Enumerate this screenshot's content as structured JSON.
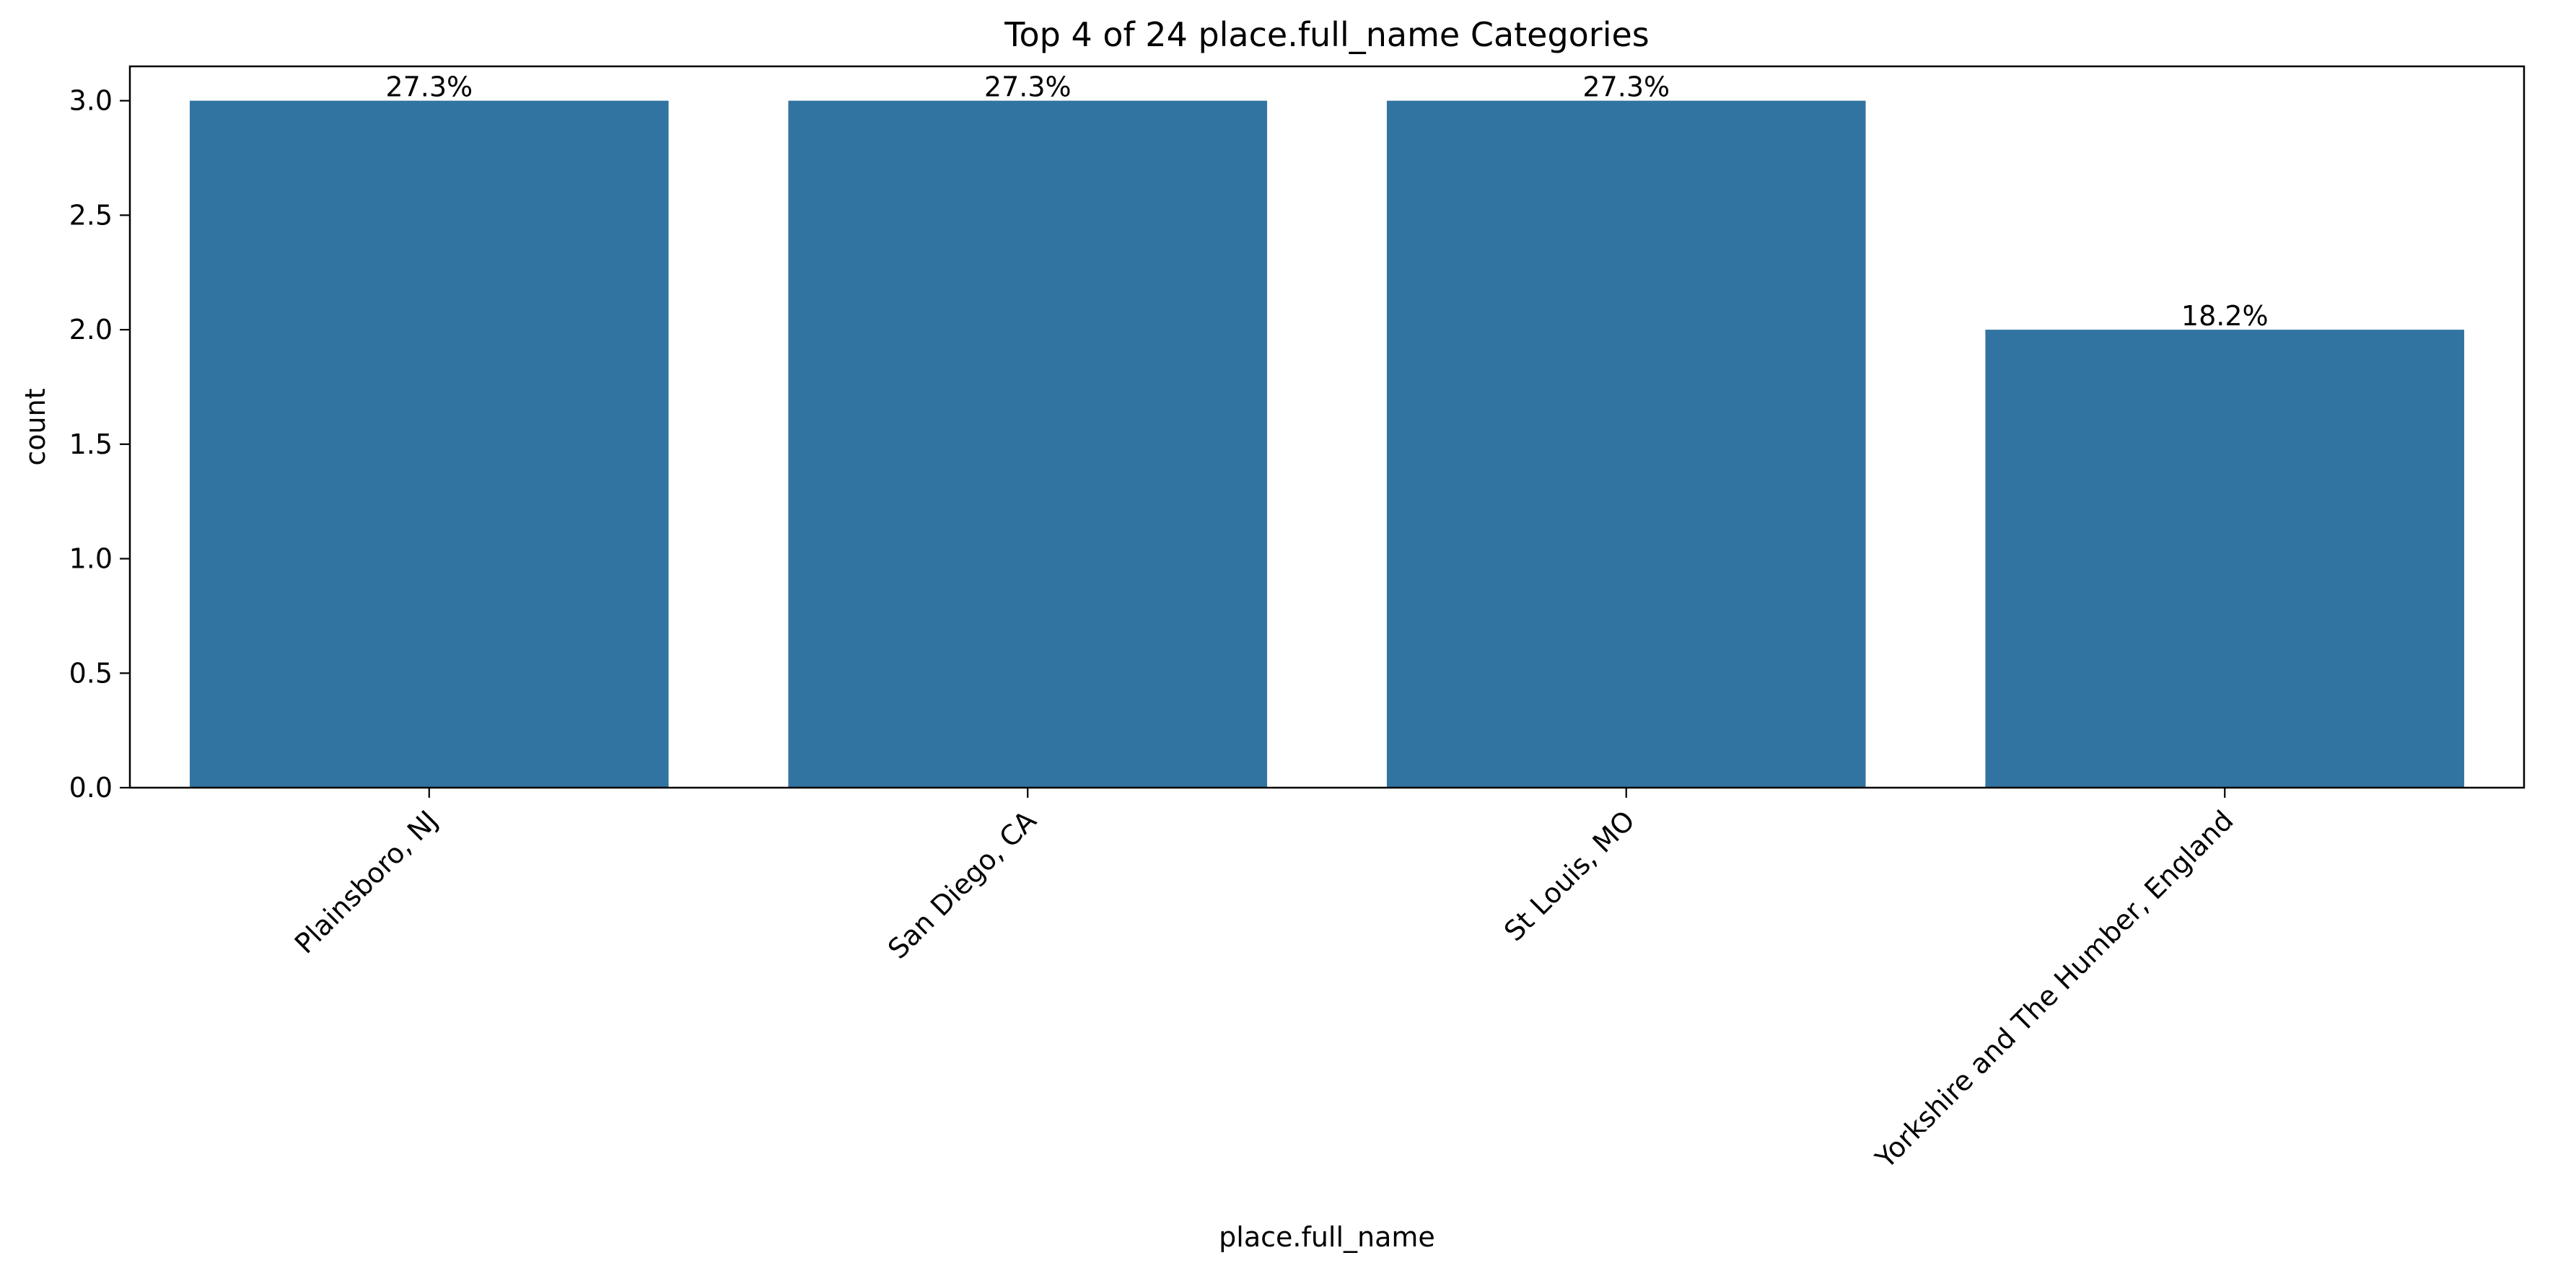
{
  "chart_data": {
    "type": "bar",
    "title": "Top 4 of 24 place.full_name Categories",
    "xlabel": "place.full_name",
    "ylabel": "count",
    "categories": [
      "Plainsboro, NJ",
      "San Diego, CA",
      "St Louis, MO",
      "Yorkshire and The Humber, England"
    ],
    "values": [
      3,
      3,
      3,
      2
    ],
    "data_labels": [
      "27.3%",
      "27.3%",
      "27.3%",
      "18.2%"
    ],
    "ylim": [
      0,
      3.15
    ],
    "yticks": [
      "0.0",
      "0.5",
      "1.0",
      "1.5",
      "2.0",
      "2.5",
      "3.0"
    ],
    "bar_color": "#3274a1",
    "grid": false,
    "legend": "none",
    "x_tick_rotation_deg": 45
  }
}
